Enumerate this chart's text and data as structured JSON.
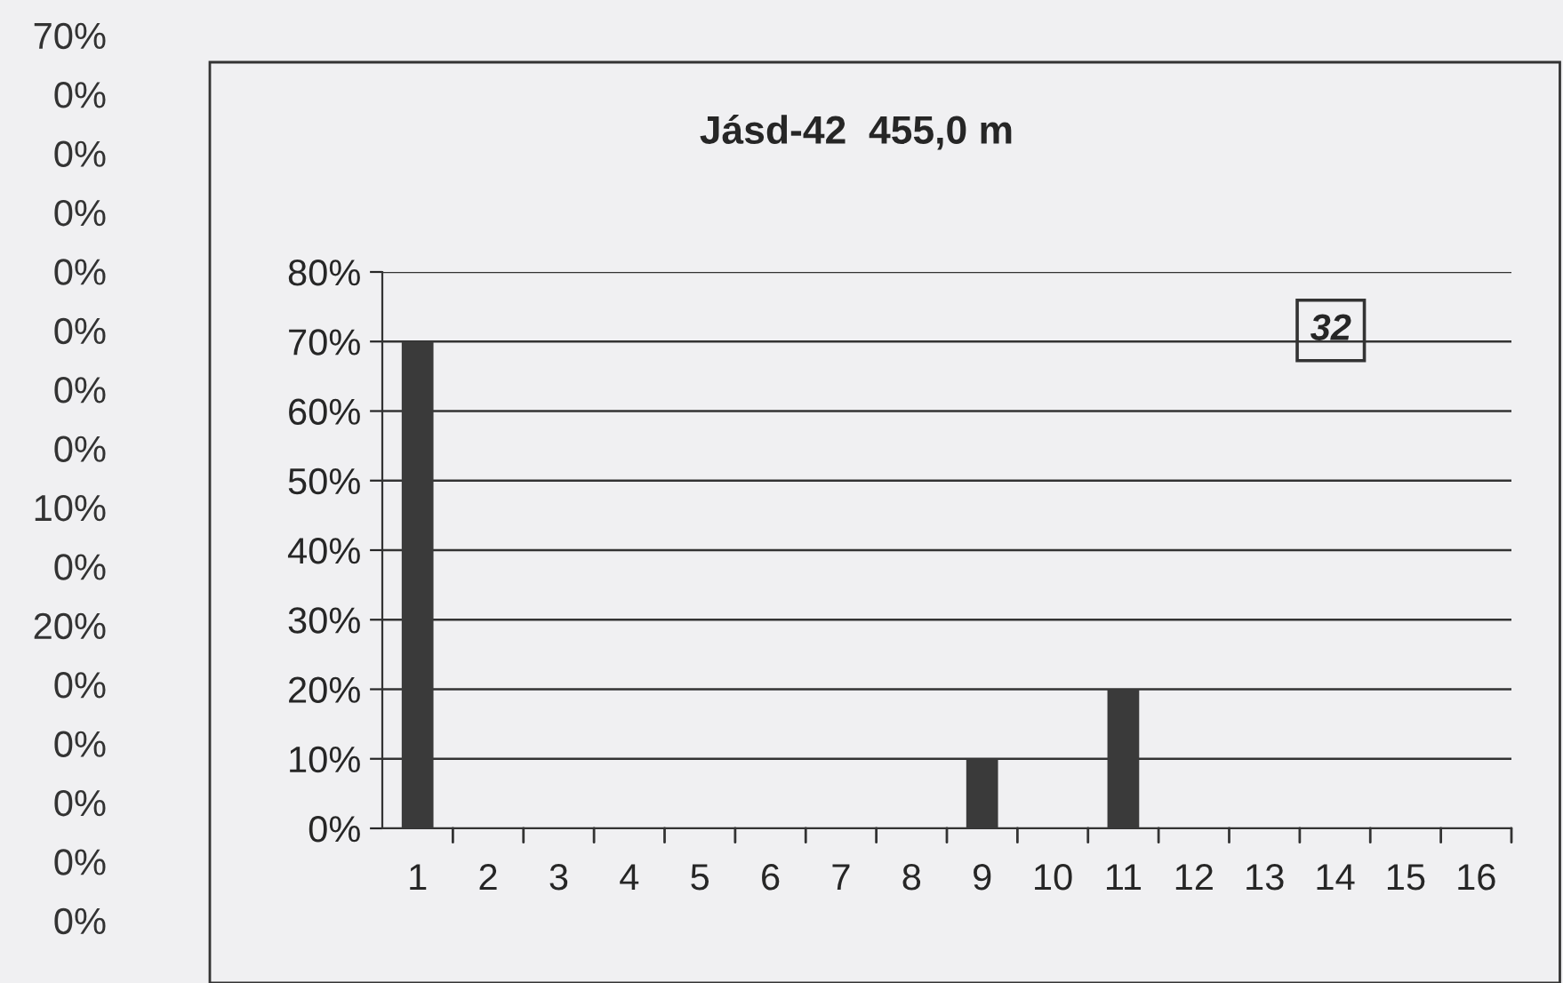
{
  "chart_data": {
    "type": "bar",
    "title": "Jásd-42  455,0 m",
    "categories": [
      "1",
      "2",
      "3",
      "4",
      "5",
      "6",
      "7",
      "8",
      "9",
      "10",
      "11",
      "12",
      "13",
      "14",
      "15",
      "16"
    ],
    "values": [
      70,
      0,
      0,
      0,
      0,
      0,
      0,
      0,
      10,
      0,
      20,
      0,
      0,
      0,
      0,
      0
    ],
    "color": "#3a3a3a",
    "ylim": [
      0,
      80
    ],
    "yticks": [
      {
        "value": 0,
        "label": "0%"
      },
      {
        "value": 10,
        "label": "10%"
      },
      {
        "value": 20,
        "label": "20%"
      },
      {
        "value": 30,
        "label": "30%"
      },
      {
        "value": 40,
        "label": "40%"
      },
      {
        "value": 50,
        "label": "50%"
      },
      {
        "value": 60,
        "label": "60%"
      },
      {
        "value": 70,
        "label": "70%"
      },
      {
        "value": 80,
        "label": "80%"
      }
    ],
    "grid": "y",
    "annotations": [
      "70%",
      "0%",
      "0%",
      "0%",
      "0%",
      "0%",
      "0%",
      "0%",
      "10%",
      "0%",
      "20%",
      "0%",
      "0%",
      "0%",
      "0%",
      "0%",
      "32"
    ]
  }
}
